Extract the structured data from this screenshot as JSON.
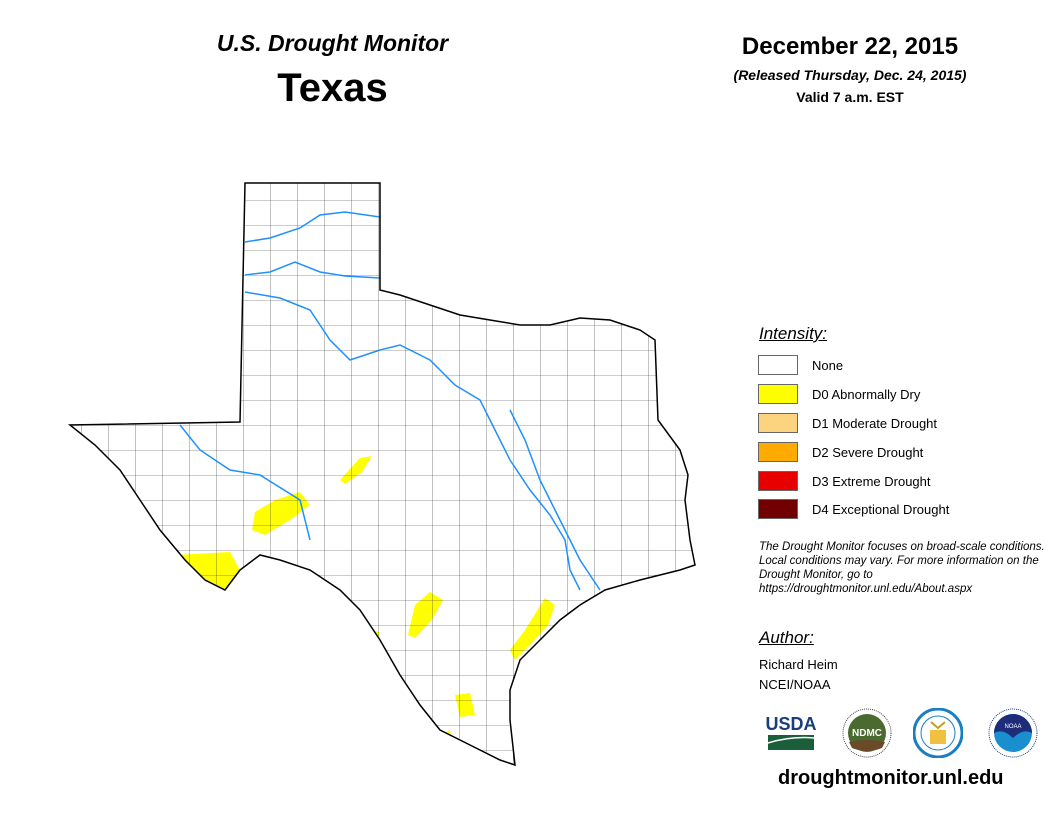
{
  "header": {
    "title": "U.S. Drought Monitor",
    "state": "Texas",
    "date": "December 22, 2015",
    "released": "(Released Thursday, Dec. 24, 2015)",
    "valid": "Valid 7 a.m. EST"
  },
  "legend": {
    "title": "Intensity:",
    "items": [
      {
        "label": "None",
        "color": "#ffffff"
      },
      {
        "label": "D0 Abnormally Dry",
        "color": "#ffff00"
      },
      {
        "label": "D1 Moderate Drought",
        "color": "#fcd37f"
      },
      {
        "label": "D2 Severe Drought",
        "color": "#ffaa00"
      },
      {
        "label": "D3 Extreme Drought",
        "color": "#e60000"
      },
      {
        "label": "D4 Exceptional Drought",
        "color": "#730000"
      }
    ]
  },
  "note": "The Drought Monitor focuses on broad-scale conditions. Local conditions may vary. For more information on the Drought Monitor, go to https://droughtmonitor.unl.edu/About.aspx",
  "author": {
    "heading": "Author:",
    "name": "Richard Heim",
    "org": "NCEI/NOAA"
  },
  "logos": [
    "USDA",
    "NDMC",
    "Dept. of Commerce",
    "NOAA"
  ],
  "footer_url": "droughtmonitor.unl.edu",
  "colors": {
    "river": "#1e90ff",
    "d0": "#ffff00"
  }
}
